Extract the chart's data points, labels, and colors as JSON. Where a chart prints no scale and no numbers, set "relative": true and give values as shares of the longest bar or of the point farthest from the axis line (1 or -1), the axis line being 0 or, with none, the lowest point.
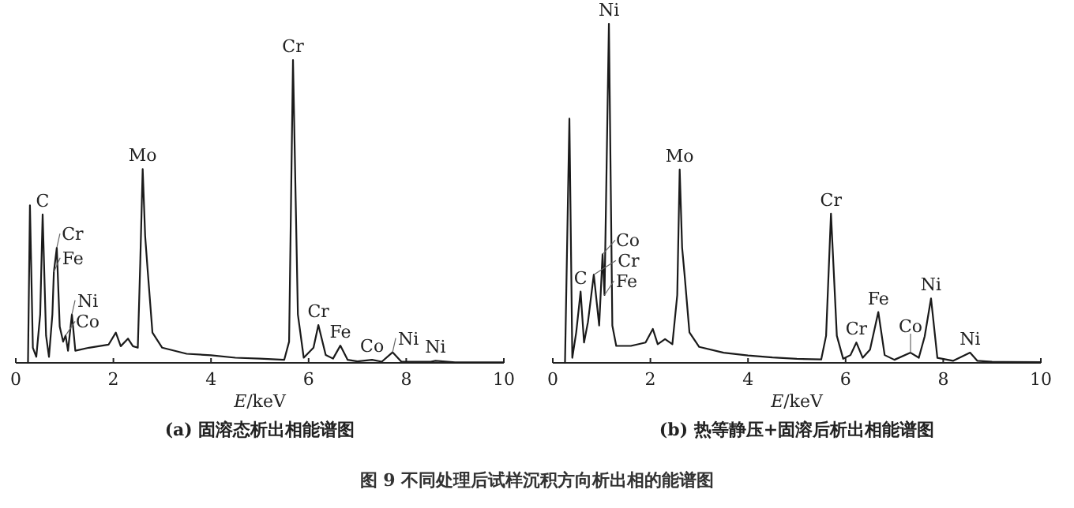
{
  "chart_data": [
    {
      "type": "line",
      "title": "(a) 固溶态析出相能谱图",
      "xlabel": "E/keV",
      "relative": true,
      "xlim": [
        0,
        10
      ],
      "xticks": [
        0,
        2,
        4,
        6,
        8,
        10
      ],
      "series": [
        {
          "color": "#1a1a1a",
          "x": [
            0.25,
            0.29,
            0.35,
            0.42,
            0.5,
            0.55,
            0.62,
            0.68,
            0.75,
            0.78,
            0.84,
            0.9,
            0.97,
            1.02,
            1.07,
            1.15,
            1.22,
            1.5,
            1.7,
            1.9,
            2.05,
            2.15,
            2.3,
            2.4,
            2.5,
            2.55,
            2.6,
            2.65,
            2.7,
            2.8,
            3.0,
            3.5,
            4.0,
            4.5,
            5.0,
            5.5,
            5.6,
            5.68,
            5.78,
            5.9,
            6.1,
            6.2,
            6.35,
            6.5,
            6.65,
            6.8,
            7.0,
            7.3,
            7.5,
            7.72,
            7.9,
            8.5,
            8.6,
            9.0,
            10.0
          ],
          "values": [
            0.0,
            0.52,
            0.05,
            0.02,
            0.16,
            0.49,
            0.09,
            0.02,
            0.16,
            0.3,
            0.38,
            0.12,
            0.07,
            0.09,
            0.04,
            0.16,
            0.04,
            0.05,
            0.055,
            0.06,
            0.1,
            0.055,
            0.08,
            0.055,
            0.05,
            0.33,
            0.64,
            0.42,
            0.31,
            0.1,
            0.05,
            0.03,
            0.025,
            0.017,
            0.014,
            0.01,
            0.07,
            1.0,
            0.16,
            0.017,
            0.05,
            0.125,
            0.026,
            0.014,
            0.057,
            0.01,
            0.005,
            0.01,
            0.004,
            0.035,
            0.004,
            0.0035,
            0.007,
            0.002,
            0.002
          ]
        }
      ],
      "annotations": [
        {
          "text": "C",
          "x": 0.55,
          "y": 0.49
        },
        {
          "text": "Cr",
          "x": 0.84,
          "y": 0.38
        },
        {
          "text": "Fe",
          "x": 0.78,
          "y": 0.3
        },
        {
          "text": "Ni",
          "x": 1.15,
          "y": 0.16
        },
        {
          "text": "Co",
          "x": 1.02,
          "y": 0.09
        },
        {
          "text": "Mo",
          "x": 2.6,
          "y": 0.64
        },
        {
          "text": "Cr",
          "x": 5.68,
          "y": 1.0
        },
        {
          "text": "Cr",
          "x": 6.2,
          "y": 0.125
        },
        {
          "text": "Fe",
          "x": 6.65,
          "y": 0.057
        },
        {
          "text": "Co",
          "x": 7.3,
          "y": 0.01
        },
        {
          "text": "Ni",
          "x": 7.72,
          "y": 0.035
        },
        {
          "text": "Ni",
          "x": 8.6,
          "y": 0.007
        },
        "图 9   不同处理后试样沉积方向析出相的能谱图"
      ]
    },
    {
      "type": "line",
      "title": "(b) 热等静压+固溶后析出相能谱图",
      "xlabel": "E/keV",
      "relative": true,
      "xlim": [
        0,
        10
      ],
      "xticks": [
        0,
        2,
        4,
        6,
        8,
        10
      ],
      "series": [
        {
          "color": "#1a1a1a",
          "x": [
            0.25,
            0.34,
            0.4,
            0.48,
            0.57,
            0.64,
            0.72,
            0.84,
            0.95,
            1.02,
            1.06,
            1.15,
            1.22,
            1.3,
            1.6,
            1.9,
            2.05,
            2.15,
            2.3,
            2.45,
            2.55,
            2.6,
            2.65,
            2.7,
            2.8,
            3.0,
            3.5,
            4.0,
            4.5,
            5.0,
            5.5,
            5.6,
            5.7,
            5.82,
            5.95,
            6.1,
            6.22,
            6.35,
            6.5,
            6.67,
            6.8,
            7.0,
            7.33,
            7.5,
            7.62,
            7.75,
            7.88,
            8.2,
            8.55,
            8.7,
            9.0,
            10.0
          ],
          "values": [
            0.0,
            0.72,
            0.015,
            0.09,
            0.21,
            0.06,
            0.12,
            0.26,
            0.11,
            0.32,
            0.2,
            1.0,
            0.11,
            0.05,
            0.05,
            0.06,
            0.1,
            0.055,
            0.07,
            0.055,
            0.2,
            0.57,
            0.34,
            0.26,
            0.09,
            0.047,
            0.03,
            0.022,
            0.016,
            0.012,
            0.01,
            0.08,
            0.44,
            0.08,
            0.012,
            0.023,
            0.06,
            0.015,
            0.039,
            0.15,
            0.023,
            0.009,
            0.03,
            0.015,
            0.078,
            0.19,
            0.015,
            0.006,
            0.03,
            0.006,
            0.003,
            0.002
          ]
        }
      ],
      "annotations": [
        {
          "text": "Ni",
          "x": 1.15,
          "y": 1.0
        },
        {
          "text": "C",
          "x": 0.57,
          "y": 0.21
        },
        {
          "text": "Cr",
          "x": 0.84,
          "y": 0.26
        },
        {
          "text": "Co",
          "x": 1.02,
          "y": 0.32
        },
        {
          "text": "Fe",
          "x": 1.06,
          "y": 0.2
        },
        {
          "text": "Mo",
          "x": 2.6,
          "y": 0.57
        },
        {
          "text": "Cr",
          "x": 5.7,
          "y": 0.44
        },
        {
          "text": "Cr",
          "x": 6.22,
          "y": 0.06
        },
        {
          "text": "Fe",
          "x": 6.67,
          "y": 0.15
        },
        {
          "text": "Co",
          "x": 7.33,
          "y": 0.03
        },
        {
          "text": "Ni",
          "x": 7.75,
          "y": 0.19
        },
        {
          "text": "Ni",
          "x": 8.55,
          "y": 0.03
        }
      ]
    }
  ]
}
